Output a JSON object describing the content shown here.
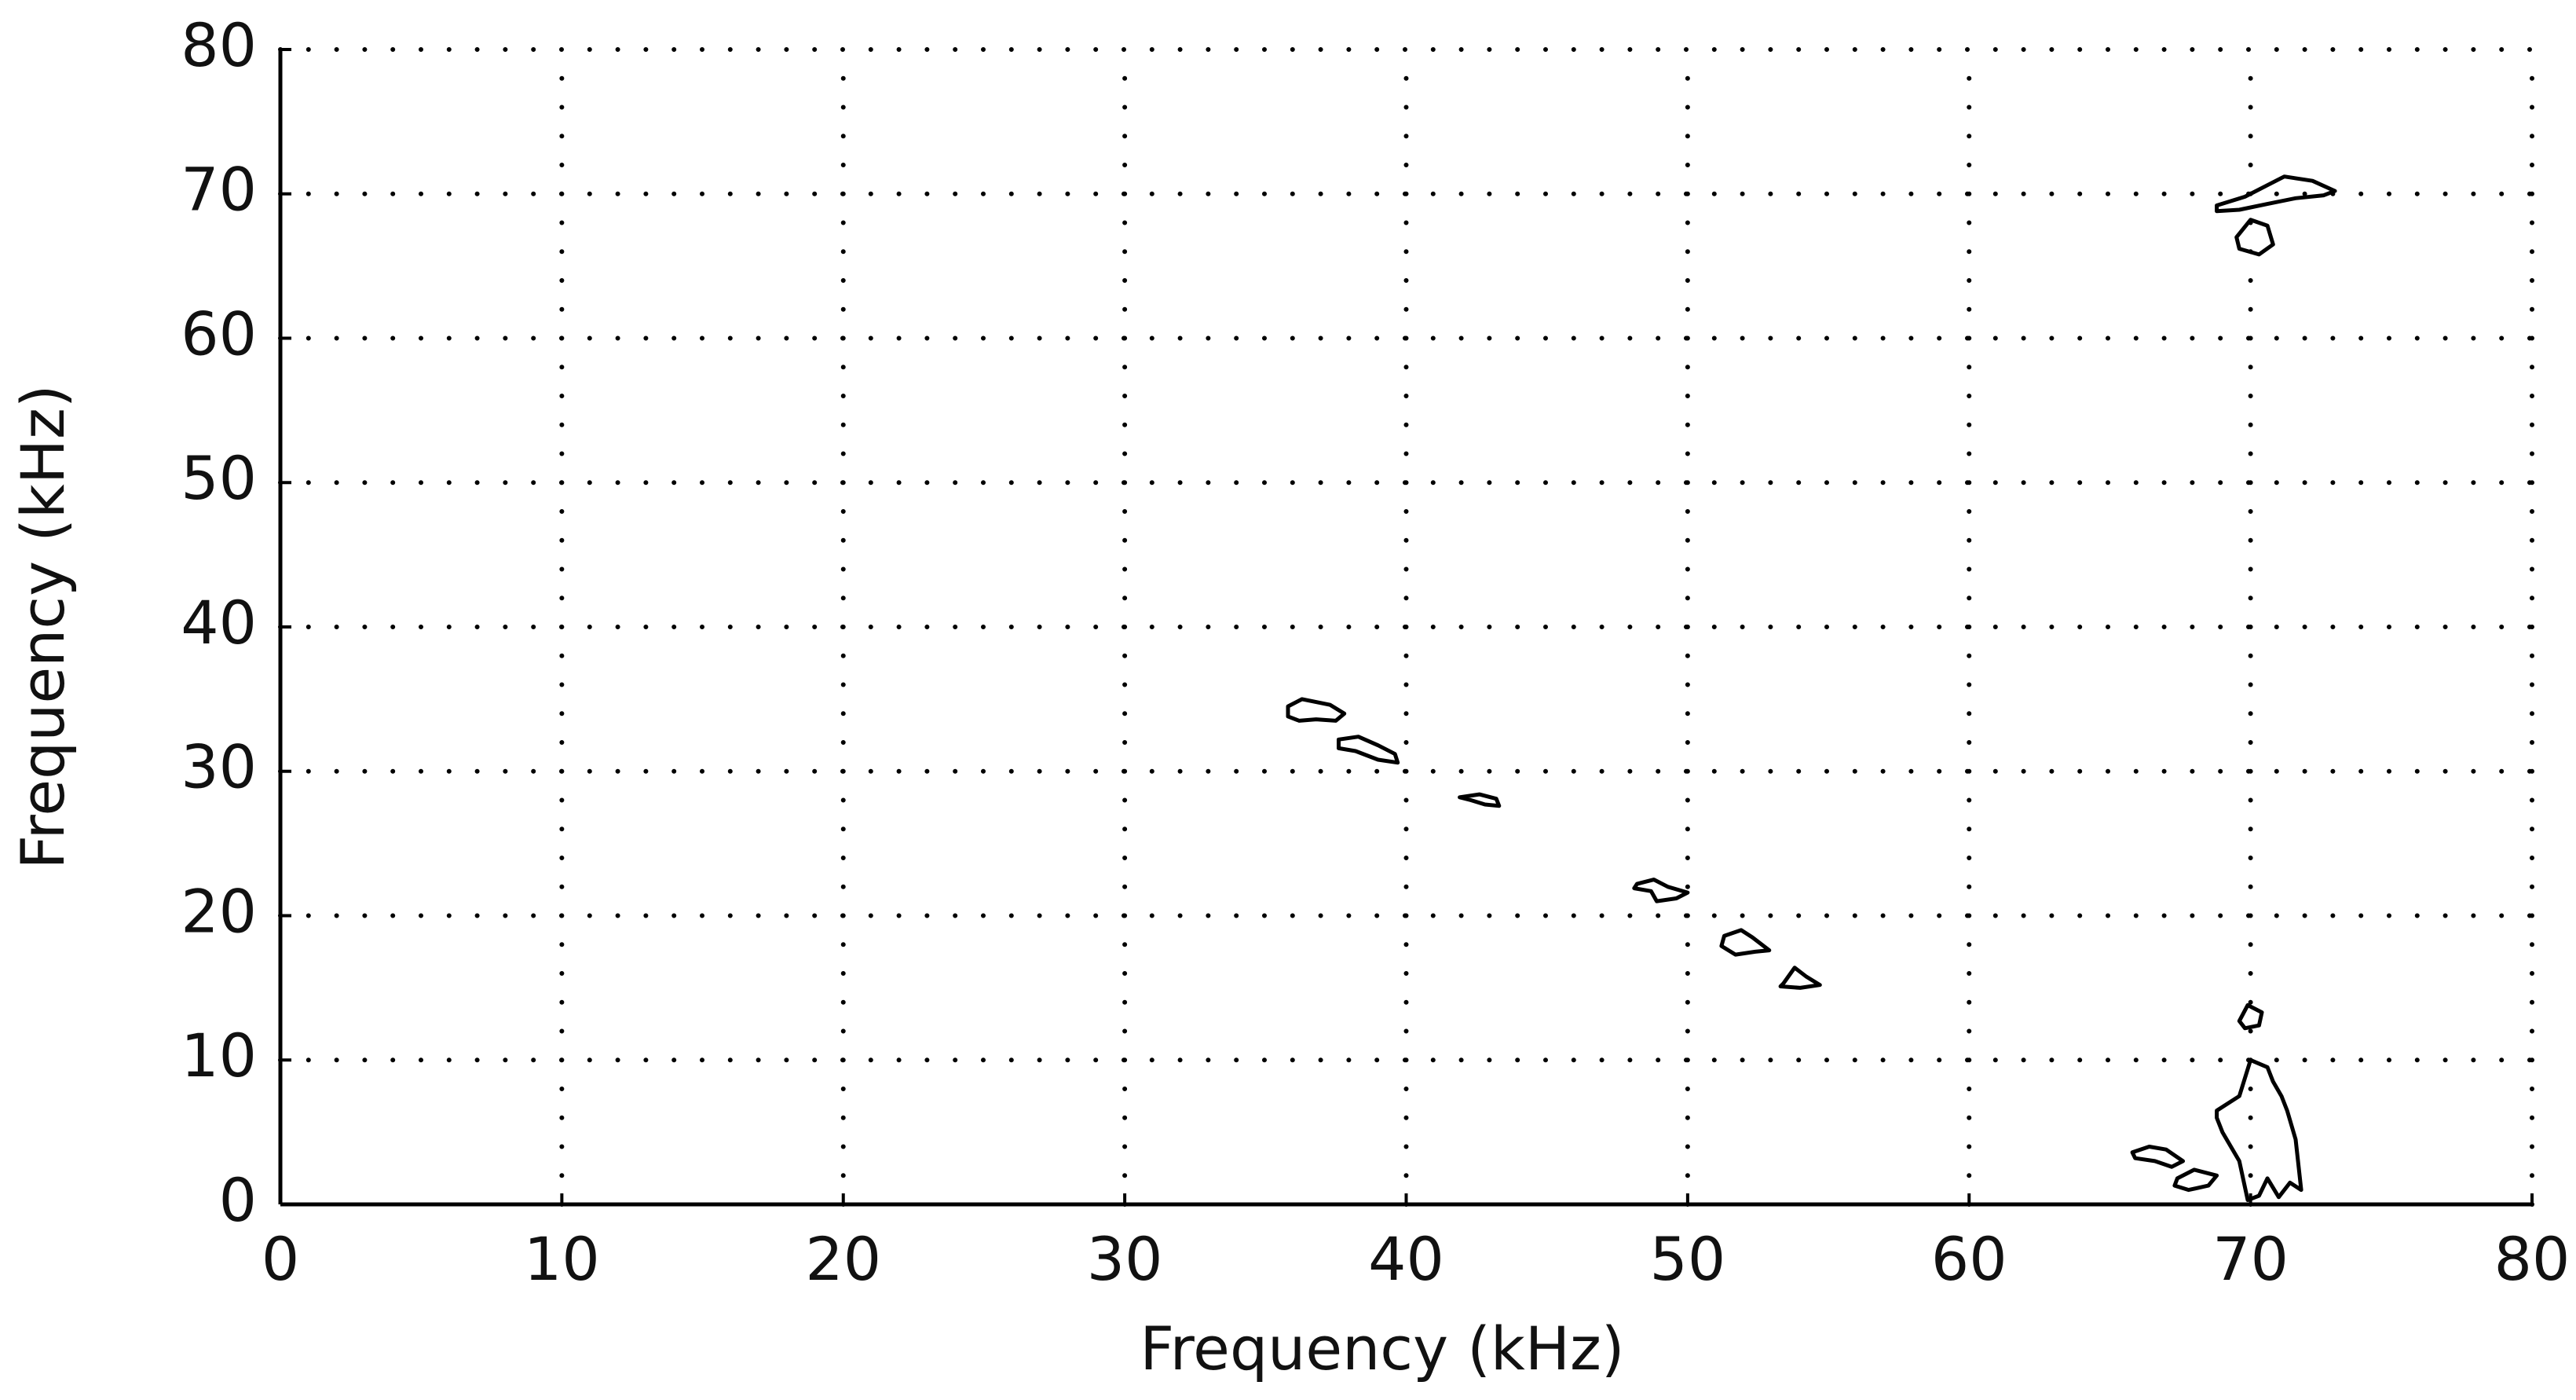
{
  "chart_data": {
    "type": "contour",
    "xlabel": "Frequency (kHz)",
    "ylabel": "Frequency (kHz)",
    "xlim": [
      0,
      80
    ],
    "ylim": [
      0,
      80
    ],
    "xticks": [
      0,
      10,
      20,
      30,
      40,
      50,
      60,
      70,
      80
    ],
    "yticks": [
      0,
      10,
      20,
      30,
      40,
      50,
      60,
      70,
      80
    ],
    "grid": true,
    "series": [
      {
        "color": "#000000",
        "x": [
          35.8,
          36.3,
          36.8,
          37.3,
          37.8,
          37.5,
          36.8,
          36.2,
          35.8
        ],
        "values": [
          34.5,
          35.0,
          34.8,
          34.6,
          34.0,
          33.5,
          33.6,
          33.5,
          33.8
        ]
      },
      {
        "color": "#000000",
        "x": [
          37.6,
          38.3,
          39.0,
          39.6,
          39.7,
          39.0,
          38.2,
          37.6
        ],
        "values": [
          32.2,
          32.4,
          31.8,
          31.2,
          30.6,
          30.8,
          31.4,
          31.6
        ]
      },
      {
        "color": "#000000",
        "x": [
          41.9,
          42.6,
          43.2,
          43.3,
          42.8,
          42.3
        ],
        "values": [
          28.2,
          28.4,
          28.1,
          27.6,
          27.7,
          28.0
        ]
      },
      {
        "color": "#000000",
        "x": [
          48.2,
          48.8,
          49.3,
          50.0,
          49.6,
          48.9,
          48.7,
          48.1
        ],
        "values": [
          22.2,
          22.5,
          22.0,
          21.6,
          21.2,
          21.0,
          21.7,
          21.9
        ]
      },
      {
        "color": "#000000",
        "x": [
          51.3,
          51.9,
          52.3,
          52.9,
          52.4,
          51.7,
          51.2
        ],
        "values": [
          18.6,
          19.0,
          18.5,
          17.6,
          17.5,
          17.3,
          17.9
        ]
      },
      {
        "color": "#000000",
        "x": [
          53.4,
          53.8,
          54.2,
          54.7,
          54.0,
          53.3
        ],
        "values": [
          15.3,
          16.4,
          15.8,
          15.2,
          15.0,
          15.1
        ]
      },
      {
        "color": "#000000",
        "x": [
          69.6,
          69.9,
          70.4,
          70.3,
          69.8
        ],
        "values": [
          12.7,
          13.8,
          13.3,
          12.4,
          12.2
        ]
      },
      {
        "color": "#000000",
        "x": [
          68.8,
          69.6,
          70.0,
          70.6,
          70.8,
          71.1,
          71.3,
          71.6,
          71.8,
          71.4,
          71.0,
          70.6,
          70.3,
          69.9,
          69.6,
          69.0,
          68.8
        ],
        "values": [
          6.5,
          7.5,
          10.0,
          9.5,
          8.5,
          7.5,
          6.5,
          4.5,
          1.0,
          1.5,
          0.5,
          1.8,
          0.6,
          0.3,
          3.0,
          5.0,
          6.0
        ]
      },
      {
        "color": "#000000",
        "x": [
          65.8,
          66.4,
          67.0,
          67.6,
          67.2,
          66.6,
          65.9
        ],
        "values": [
          3.6,
          4.0,
          3.8,
          3.0,
          2.6,
          3.0,
          3.2
        ]
      },
      {
        "color": "#000000",
        "x": [
          67.4,
          68.0,
          68.8,
          68.5,
          67.8,
          67.3
        ],
        "values": [
          1.8,
          2.4,
          2.0,
          1.3,
          1.0,
          1.3
        ]
      },
      {
        "color": "#000000",
        "x": [
          68.8,
          69.8,
          70.6,
          71.2,
          72.2,
          73.0,
          72.6,
          71.6,
          70.6,
          69.6,
          68.8
        ],
        "values": [
          69.2,
          69.8,
          70.6,
          71.2,
          70.9,
          70.2,
          69.9,
          69.7,
          69.3,
          68.9,
          68.8
        ]
      },
      {
        "color": "#000000",
        "x": [
          69.5,
          70.0,
          70.6,
          70.8,
          70.3,
          69.6
        ],
        "values": [
          67.0,
          68.2,
          67.8,
          66.5,
          65.8,
          66.2
        ]
      }
    ]
  }
}
